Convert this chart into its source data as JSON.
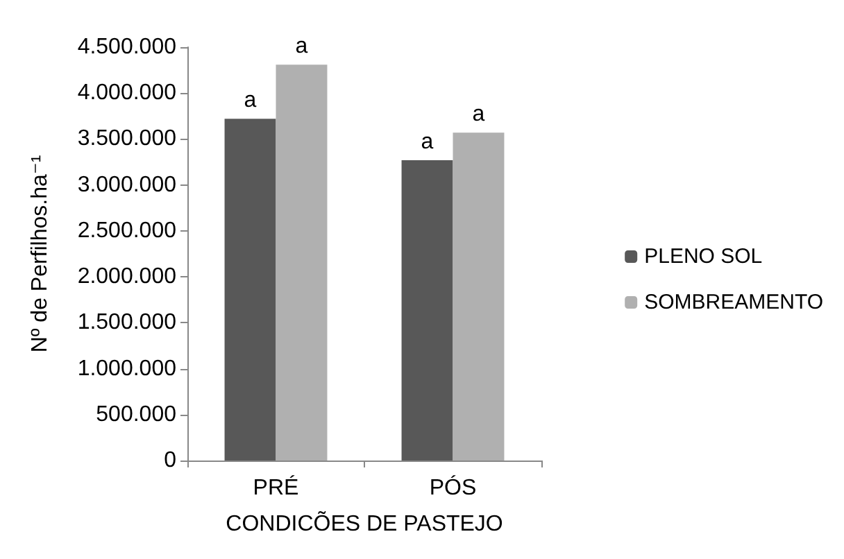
{
  "chart_data": {
    "type": "bar",
    "categories": [
      "PRÉ",
      "PÓS"
    ],
    "xlabel": "CONDICÕES DE PASTEJO",
    "ylabel": "Nº de Perfilhos.ha⁻¹",
    "series": [
      {
        "name": "PLENO SOL",
        "color": "#585858",
        "values": [
          3720000,
          3270000
        ],
        "value_labels": [
          "a",
          "a"
        ]
      },
      {
        "name": "SOMBREAMENTO",
        "color": "#b0b0b0",
        "values": [
          4310000,
          3570000
        ],
        "value_labels": [
          "a",
          "a"
        ]
      }
    ],
    "ylim": [
      0,
      4500000
    ],
    "yticks": [
      0,
      {
        "value": 500000,
        "label": "500.000"
      },
      {
        "value": 1000000,
        "label": "1.000.000"
      },
      {
        "value": 1500000,
        "label": "1.500.000"
      },
      {
        "value": 2000000,
        "label": "2.000.000"
      },
      {
        "value": 2500000,
        "label": "2.500.000"
      },
      {
        "value": 3000000,
        "label": "3.000.000"
      },
      {
        "value": 3500000,
        "label": "3.500.000"
      },
      {
        "value": 4000000,
        "label": "4.000.000"
      },
      {
        "value": 4500000,
        "label": "4.500.000"
      }
    ],
    "grid": false,
    "legend": "right"
  }
}
